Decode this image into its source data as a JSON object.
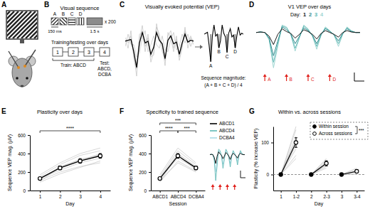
{
  "panel_labels": [
    "A",
    "B",
    "C",
    "D",
    "E",
    "F",
    "G"
  ],
  "sequence_diagram": {
    "title": "Visual sequence",
    "elements": [
      "A",
      "B",
      "C",
      "D"
    ],
    "element_duration": "150 ms",
    "gray_duration": "1.5 s",
    "repeats": "x 200",
    "schedule_title": "Training/testing over days",
    "days": [
      "1",
      "2",
      "3",
      "4"
    ],
    "train_label": "Train: ABCD",
    "test_label": [
      "Test:",
      "ABCD,",
      "DCBA"
    ]
  },
  "chart_data": [
    {
      "type": "line",
      "title": "Visually evoked potential (VEP)",
      "tick_labels": false,
      "x": [
        0,
        30,
        60,
        90,
        120,
        150,
        180,
        210,
        240,
        270,
        300,
        330,
        360,
        390,
        420,
        450,
        480,
        510,
        540,
        570,
        600,
        630,
        660,
        690,
        720
      ],
      "xlim": [
        0,
        720
      ],
      "ylim": [
        -220,
        130
      ],
      "series": [
        {
          "color": "#b5b5b5",
          "values": [
            20,
            -10,
            30,
            -80,
            -200,
            10,
            90,
            -30,
            20,
            -120,
            -60,
            80,
            40,
            -60,
            -110,
            30,
            60,
            -40,
            10,
            -90,
            -30,
            60,
            -10,
            30,
            -20
          ]
        },
        {
          "color": "#b5b5b5",
          "values": [
            -30,
            40,
            -20,
            -20,
            -90,
            -70,
            20,
            60,
            -60,
            -20,
            30,
            -20,
            -40,
            30,
            -50,
            -60,
            10,
            50,
            -50,
            -30,
            40,
            -10,
            40,
            -30,
            10
          ]
        },
        {
          "color": "#b5b5b5",
          "values": [
            10,
            -40,
            60,
            -100,
            -160,
            40,
            50,
            -60,
            40,
            -90,
            -80,
            100,
            10,
            -20,
            -140,
            50,
            20,
            -60,
            30,
            -110,
            -40,
            80,
            -40,
            20,
            0
          ]
        },
        {
          "color": "#000000",
          "values": [
            0,
            5,
            10,
            -60,
            -150,
            -10,
            50,
            -10,
            0,
            -75,
            -35,
            50,
            5,
            -15,
            -100,
            5,
            30,
            -15,
            -5,
            -75,
            -10,
            40,
            -5,
            5,
            0
          ]
        }
      ]
    },
    {
      "type": "line",
      "tick_labels": false,
      "x": [
        0,
        30,
        60,
        90,
        120,
        150,
        180,
        210,
        240,
        270,
        300,
        330,
        360,
        390,
        420,
        450,
        480,
        510,
        540,
        570,
        600,
        630,
        660,
        690,
        720
      ],
      "xlim": [
        0,
        720
      ],
      "ylim": [
        -170,
        70
      ],
      "series": [
        {
          "color": "#000000",
          "values": [
            0,
            5,
            10,
            -60,
            -150,
            -10,
            50,
            -10,
            0,
            -75,
            -35,
            50,
            5,
            -15,
            -100,
            5,
            30,
            -15,
            -5,
            -75,
            -10,
            40,
            -5,
            5,
            0
          ]
        }
      ],
      "components": {
        "labels": [
          "A",
          "B",
          "C",
          "D"
        ],
        "x": [
          120,
          270,
          420,
          570
        ]
      },
      "annotation": [
        "Sequence magnitude:",
        "(A + B + C + D) / 4"
      ]
    },
    {
      "type": "line",
      "title": "V1 VEP over days",
      "legend_title": "Day:",
      "tick_labels": false,
      "x": [
        0,
        30,
        60,
        90,
        120,
        150,
        180,
        210,
        240,
        270,
        300,
        330,
        360,
        390,
        420,
        450,
        480,
        510,
        540,
        570,
        600,
        630,
        660,
        690,
        720
      ],
      "xlim": [
        0,
        720
      ],
      "ylim": [
        -400,
        120
      ],
      "series": [
        {
          "name": "1",
          "color": "#1a1a1a",
          "values": [
            0,
            5,
            0,
            -40,
            -130,
            -20,
            40,
            10,
            -10,
            -60,
            -20,
            30,
            10,
            -20,
            -70,
            -10,
            20,
            0,
            -20,
            -50,
            0,
            20,
            5,
            0,
            0
          ]
        },
        {
          "name": "2",
          "color": "#2f8a8c",
          "values": [
            0,
            5,
            0,
            -60,
            -250,
            -90,
            60,
            30,
            -15,
            -120,
            -40,
            50,
            20,
            -30,
            -120,
            -20,
            40,
            10,
            -25,
            -90,
            -10,
            40,
            10,
            0,
            0
          ]
        },
        {
          "name": "3",
          "color": "#5fb8b4",
          "values": [
            0,
            5,
            0,
            -70,
            -320,
            -120,
            70,
            50,
            -20,
            -170,
            -50,
            70,
            30,
            -35,
            -150,
            -25,
            50,
            15,
            -25,
            -120,
            -15,
            50,
            15,
            0,
            0
          ]
        },
        {
          "name": "4",
          "color": "#9fd6d2",
          "values": [
            0,
            5,
            0,
            -80,
            -380,
            -150,
            80,
            60,
            -20,
            -200,
            -60,
            80,
            40,
            -40,
            -180,
            -30,
            60,
            20,
            -30,
            -150,
            -20,
            60,
            20,
            0,
            0
          ]
        }
      ],
      "stimuli": {
        "labels": [
          "A",
          "B",
          "C",
          "D"
        ],
        "x": [
          60,
          210,
          360,
          510
        ]
      }
    },
    {
      "type": "line",
      "title": "Plasticity over days",
      "x_label": "Day",
      "y_label": "Sequence VEP mag. (µV)",
      "categories": [
        "1",
        "2",
        "3",
        "4"
      ],
      "values": [
        130,
        245,
        320,
        375
      ],
      "errors": [
        12,
        20,
        25,
        25
      ],
      "color": "#000000",
      "subjects": [
        [
          110,
          200,
          260,
          300
        ],
        [
          150,
          280,
          380,
          430
        ],
        [
          90,
          180,
          250,
          320
        ],
        [
          170,
          300,
          400,
          460
        ],
        [
          130,
          220,
          300,
          350
        ],
        [
          120,
          260,
          330,
          390
        ],
        [
          140,
          240,
          320,
          400
        ],
        [
          100,
          250,
          340,
          380
        ]
      ],
      "ylim": [
        0,
        600
      ],
      "yticks": [
        0,
        200,
        400,
        600
      ],
      "significance": [
        {
          "from": 0,
          "to": 3,
          "label": "****"
        }
      ]
    },
    {
      "type": "line",
      "title": "Specificity to trained sequence",
      "x_label": "Session",
      "y_label": "Sequence VEP mag. (µV)",
      "categories": [
        "ABCD1",
        "ABCD4",
        "DCBA4"
      ],
      "values": [
        130,
        375,
        245
      ],
      "errors": [
        12,
        25,
        20
      ],
      "color": "#000000",
      "subjects": [
        [
          110,
          300,
          200
        ],
        [
          150,
          430,
          280
        ],
        [
          90,
          320,
          210
        ],
        [
          170,
          460,
          300
        ],
        [
          130,
          350,
          240
        ],
        [
          120,
          390,
          250
        ],
        [
          140,
          400,
          260
        ],
        [
          100,
          380,
          220
        ]
      ],
      "ylim": [
        0,
        600
      ],
      "yticks": [
        0,
        200,
        400,
        600
      ],
      "significance": [
        {
          "from": 0,
          "to": 1,
          "label": "****"
        },
        {
          "from": 0,
          "to": 2,
          "label": "***"
        },
        {
          "from": 1,
          "to": 2,
          "label": "***"
        }
      ],
      "inset": {
        "type": "line",
        "tick_labels": false,
        "x": [
          0,
          30,
          60,
          90,
          120,
          150,
          180,
          210,
          240,
          270,
          300,
          330,
          360,
          390,
          420,
          450,
          480,
          510,
          540,
          570,
          600,
          630,
          660,
          690,
          720
        ],
        "xlim": [
          0,
          720
        ],
        "ylim": [
          -400,
          120
        ],
        "series": [
          {
            "name": "ABCD1",
            "color": "#000000",
            "values": [
              0,
              5,
              0,
              -40,
              -130,
              -20,
              40,
              10,
              -10,
              -60,
              -20,
              30,
              10,
              -20,
              -70,
              -10,
              20,
              0,
              -20,
              -50,
              0,
              20,
              5,
              0,
              0
            ]
          },
          {
            "name": "ABCD4",
            "color": "#5fb8b4",
            "values": [
              0,
              5,
              0,
              -80,
              -380,
              -150,
              80,
              60,
              -20,
              -200,
              -60,
              80,
              40,
              -40,
              -180,
              -30,
              60,
              20,
              -30,
              -150,
              -20,
              60,
              20,
              0,
              0
            ]
          },
          {
            "name": "DCBA4",
            "color": "#a9dbe6",
            "values": [
              0,
              5,
              0,
              -70,
              -250,
              -80,
              60,
              30,
              -20,
              -140,
              -40,
              60,
              20,
              -30,
              -130,
              -20,
              40,
              10,
              -25,
              -100,
              -10,
              40,
              10,
              0,
              0
            ]
          }
        ],
        "stimulus_x": [
          60,
          210,
          360,
          510
        ]
      }
    },
    {
      "type": "scatter",
      "title": "Within vs. across sessions",
      "x_label": "Day",
      "y_label": "Plasticity (% increase VEP)",
      "categories": [
        "1",
        "1-2",
        "2",
        "2-3",
        "3",
        "3-4"
      ],
      "series": [
        {
          "name": "Within session",
          "marker": "filled-circle",
          "color": "#000000",
          "values": [
            0,
            null,
            0,
            null,
            0,
            null
          ]
        },
        {
          "name": "Across sessions",
          "marker": "open-circle",
          "color": "#000000",
          "values": [
            null,
            100,
            null,
            35,
            null,
            10
          ],
          "errors": [
            null,
            15,
            null,
            8,
            null,
            5
          ]
        }
      ],
      "subjects": [
        [
          80,
          30,
          5
        ],
        [
          150,
          50,
          20
        ],
        [
          60,
          20,
          0
        ],
        [
          120,
          45,
          15
        ],
        [
          90,
          25,
          10
        ],
        [
          140,
          40,
          8
        ],
        [
          110,
          35,
          12
        ],
        [
          50,
          30,
          10
        ]
      ],
      "reference_line": 0,
      "ylim": [
        -50,
        150
      ],
      "yticks": [
        0,
        100
      ],
      "legend": "upper right",
      "legend_significance": "***"
    }
  ]
}
